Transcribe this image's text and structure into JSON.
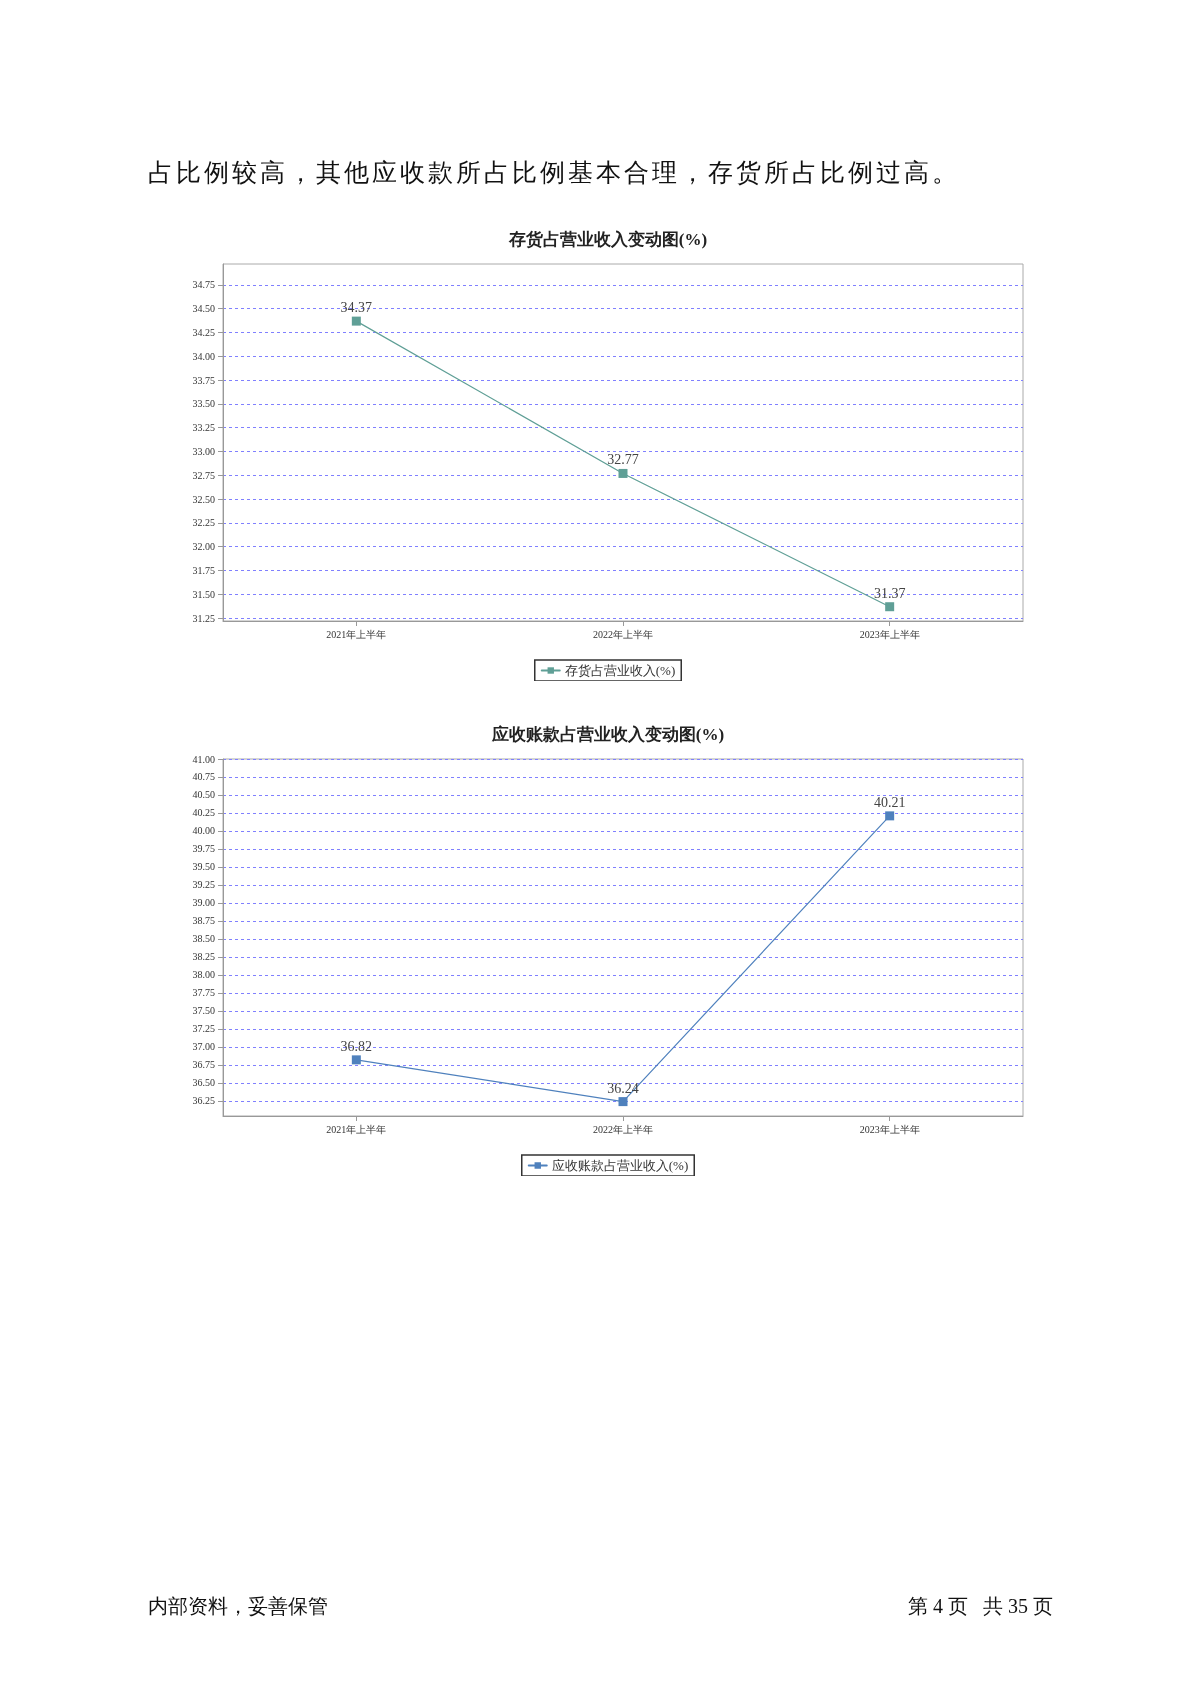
{
  "chart_data": [
    {
      "type": "line",
      "title": "存货占营业收入变动图(%)",
      "categories": [
        "2021年上半年",
        "2022年上半年",
        "2023年上半年"
      ],
      "series": [
        {
          "name": "存货占营业收入(%)",
          "color": "#5f9f96",
          "values": [
            34.37,
            32.77,
            31.37
          ]
        }
      ],
      "ylim": [
        31.22,
        34.97
      ],
      "yticks": [
        {
          "value": 31.25,
          "label": "31.25"
        },
        {
          "value": 31.5,
          "label": "31.50"
        },
        {
          "value": 31.75,
          "label": "31.75"
        },
        {
          "value": 32,
          "label": "32.00"
        },
        {
          "value": 32.25,
          "label": "32.25"
        },
        {
          "value": 32.5,
          "label": "32.50"
        },
        {
          "value": 32.75,
          "label": "32.75"
        },
        {
          "value": 33,
          "label": "33.00"
        },
        {
          "value": 33.25,
          "label": "33.25"
        },
        {
          "value": 33.5,
          "label": "33.50"
        },
        {
          "value": 33.75,
          "label": "33.75"
        },
        {
          "value": 34,
          "label": "34.00"
        },
        {
          "value": 34.25,
          "label": "34.25"
        },
        {
          "value": 34.5,
          "label": "34.50"
        },
        {
          "value": 34.75,
          "label": "34.75"
        }
      ],
      "grid": "y",
      "legend": "bottom",
      "marker": "square",
      "line_style": "solid",
      "data_labels": true,
      "annotations": [
        "占比例较高，其他应收款所占比例基本合理，存货所占比例过高。"
      ]
    },
    {
      "type": "line",
      "title": "应收账款占营业收入变动图(%)",
      "categories": [
        "2021年上半年",
        "2022年上半年",
        "2023年上半年"
      ],
      "series": [
        {
          "name": "应收账款占营业收入(%)",
          "color": "#4f81bd",
          "values": [
            36.82,
            36.24,
            40.21
          ]
        }
      ],
      "ylim": [
        36.04,
        41
      ],
      "yticks": [
        {
          "value": 36.25,
          "label": "36.25"
        },
        {
          "value": 36.5,
          "label": "36.50"
        },
        {
          "value": 36.75,
          "label": "36.75"
        },
        {
          "value": 37,
          "label": "37.00"
        },
        {
          "value": 37.25,
          "label": "37.25"
        },
        {
          "value": 37.5,
          "label": "37.50"
        },
        {
          "value": 37.75,
          "label": "37.75"
        },
        {
          "value": 38,
          "label": "38.00"
        },
        {
          "value": 38.25,
          "label": "38.25"
        },
        {
          "value": 38.5,
          "label": "38.50"
        },
        {
          "value": 38.75,
          "label": "38.75"
        },
        {
          "value": 39,
          "label": "39.00"
        },
        {
          "value": 39.25,
          "label": "39.25"
        },
        {
          "value": 39.5,
          "label": "39.50"
        },
        {
          "value": 39.75,
          "label": "39.75"
        },
        {
          "value": 40,
          "label": "40.00"
        },
        {
          "value": 40.25,
          "label": "40.25"
        },
        {
          "value": 40.5,
          "label": "40.50"
        },
        {
          "value": 40.75,
          "label": "40.75"
        },
        {
          "value": 41,
          "label": "41.00"
        }
      ],
      "grid": "y",
      "legend": "bottom",
      "marker": "square",
      "line_style": "solid",
      "data_labels": true,
      "annotations": [
        "内部资料，妥善保管",
        "第 4 页   共 35 页"
      ]
    }
  ]
}
